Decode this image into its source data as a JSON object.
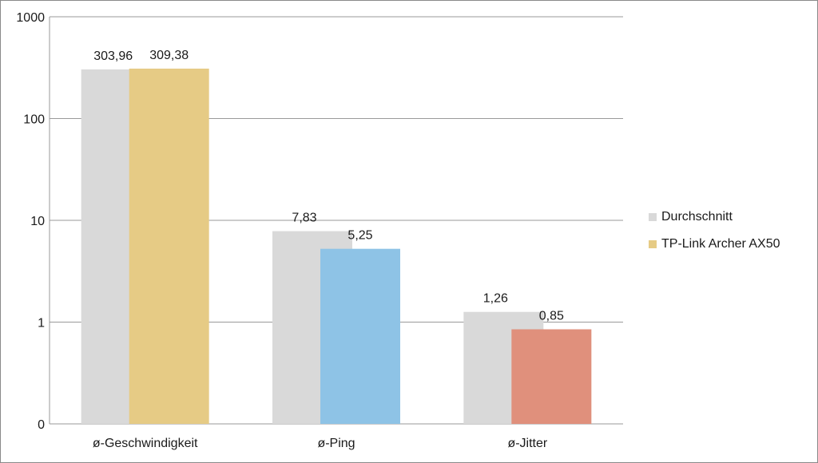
{
  "chart_data": {
    "type": "bar",
    "y_scale": "log",
    "categories": [
      "ø-Geschwindigkeit",
      "ø-Ping",
      "ø-Jitter"
    ],
    "series": [
      {
        "name": "Durchschnitt",
        "values": [
          303.96,
          7.83,
          1.26
        ],
        "labels": [
          "303,96",
          "7,83",
          "1,26"
        ],
        "colors": [
          "#d9d9d9",
          "#d9d9d9",
          "#d9d9d9"
        ]
      },
      {
        "name": "TP-Link Archer AX50",
        "values": [
          309.38,
          5.25,
          0.85
        ],
        "labels": [
          "309,38",
          "5,25",
          "0,85"
        ],
        "colors": [
          "#e6cb85",
          "#8ec3e6",
          "#e0907c"
        ]
      }
    ],
    "y_ticks": [
      {
        "value": 0.1,
        "label": "0"
      },
      {
        "value": 1,
        "label": "1"
      },
      {
        "value": 10,
        "label": "10"
      },
      {
        "value": 100,
        "label": "100"
      },
      {
        "value": 1000,
        "label": "1000"
      }
    ],
    "ylim": [
      0.1,
      1000
    ],
    "grid": true,
    "legend_position": "right",
    "legend_swatch_colors": [
      "#d9d9d9",
      "#e6cb85"
    ]
  }
}
